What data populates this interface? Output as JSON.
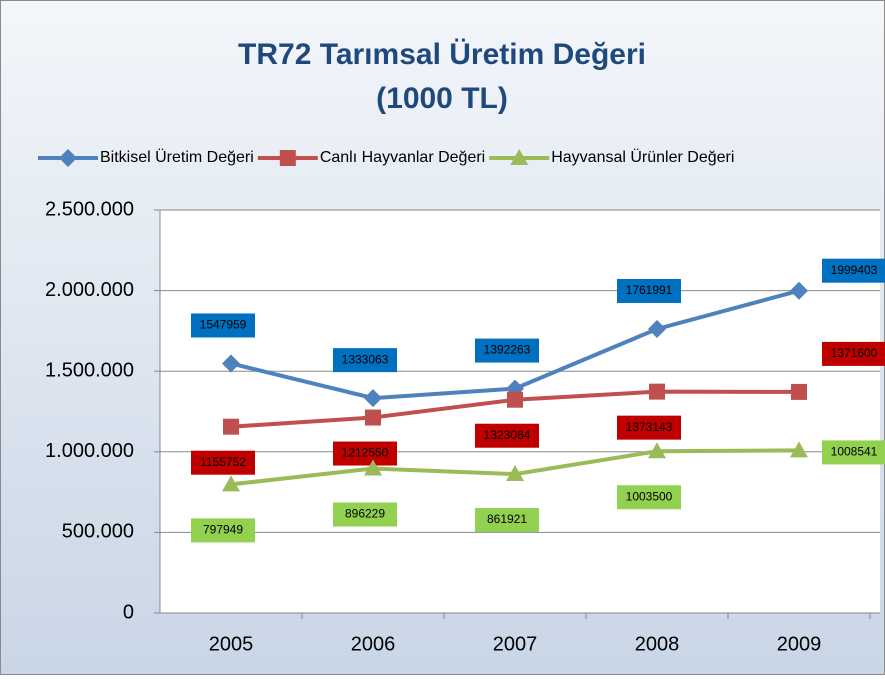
{
  "chart_data": {
    "type": "line",
    "title": "TR72 Tarımsal Üretim Değeri",
    "subtitle": "(1000 TL)",
    "categories": [
      "2005",
      "2006",
      "2007",
      "2008",
      "2009"
    ],
    "series": [
      {
        "name": "Bitkisel Üretim Değeri",
        "color": "#4f81bd",
        "label_color": "#0070c0",
        "marker": "diamond",
        "values": [
          1547959,
          1333063,
          1392263,
          1761991,
          1999403
        ]
      },
      {
        "name": "Canlı Hayvanlar Değeri",
        "color": "#c0504d",
        "label_color": "#c00000",
        "marker": "square",
        "values": [
          1155752,
          1212550,
          1323084,
          1373143,
          1371600
        ]
      },
      {
        "name": "Hayvansal Ürünler Değeri",
        "color": "#9bbb59",
        "label_color": "#92d050",
        "marker": "triangle",
        "values": [
          797949,
          896229,
          861921,
          1003500,
          1008541
        ]
      }
    ],
    "ylim": [
      0,
      2500000
    ],
    "yticks": [
      0,
      {
        "value": 500000,
        "label": "500.000"
      },
      {
        "value": 1000000,
        "label": "1.000.000"
      },
      {
        "value": 1500000,
        "label": "1.500.000"
      },
      {
        "value": 2000000,
        "label": "2.000.000"
      },
      {
        "value": 2500000,
        "label": "2.500.000"
      }
    ],
    "grid": true,
    "legend": "top"
  }
}
